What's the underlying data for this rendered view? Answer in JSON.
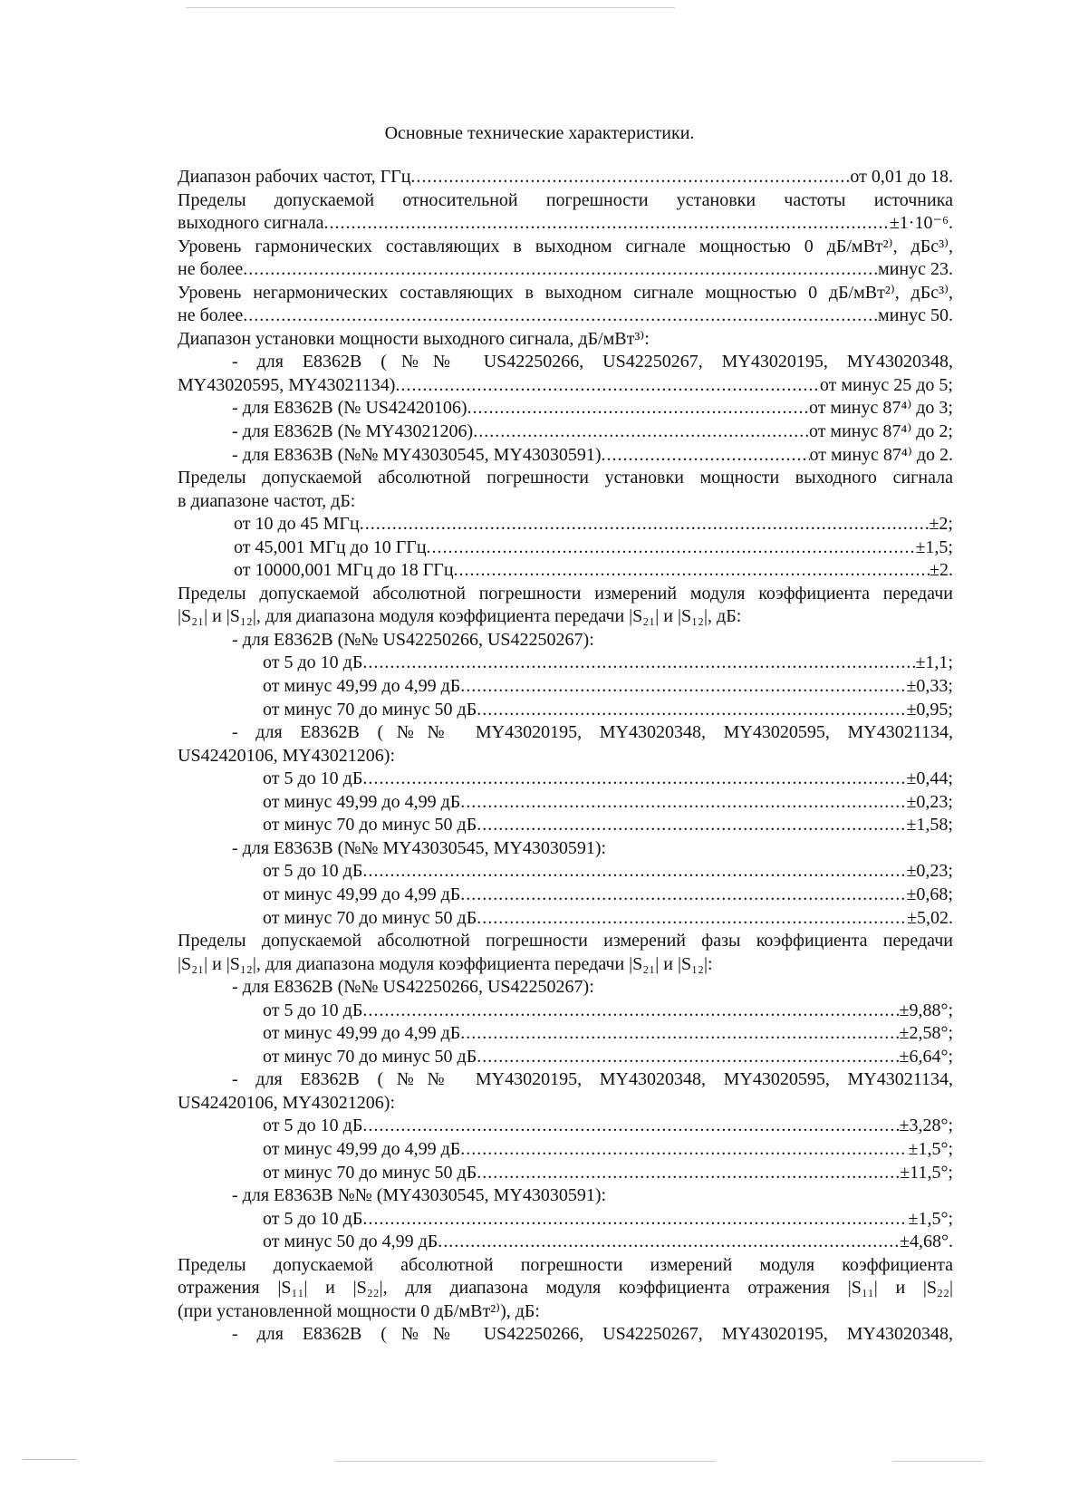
{
  "title": "Основные технические характеристики.",
  "lines": [
    {
      "type": "leader",
      "level": 0,
      "label": "Диапазон рабочих частот, ГГц",
      "value": "от 0,01 до 18."
    },
    {
      "type": "justify",
      "level": 0,
      "text": "Пределы допускаемой относительной погрешности установки частоты источника"
    },
    {
      "type": "leader",
      "level": 0,
      "label": "выходного сигнала",
      "value": "±1·10⁻⁶."
    },
    {
      "type": "justify",
      "level": 0,
      "text": "Уровень гармонических составляющих в выходном сигнале мощностью 0 дБ/мВт²⁾, дБс³⁾,"
    },
    {
      "type": "leader",
      "level": 0,
      "label": "не более",
      "value": "минус 23."
    },
    {
      "type": "justify",
      "level": 0,
      "text": "Уровень негармонических составляющих в выходном сигнале мощностью 0 дБ/мВт²⁾, дБс³⁾,"
    },
    {
      "type": "leader",
      "level": 0,
      "label": "не более",
      "value": "минус 50."
    },
    {
      "type": "plain",
      "level": 0,
      "text": "Диапазон установки мощности выходного сигнала, дБ/мВт³⁾:"
    },
    {
      "type": "justify",
      "level": 1,
      "text": "- для E8362B (№№ US42250266, US42250267, MY43020195, MY43020348,"
    },
    {
      "type": "leader",
      "level": 0,
      "label": "MY43020595, MY43021134)",
      "value": "от минус 25 до 5;"
    },
    {
      "type": "leader",
      "level": 1,
      "label": "- для E8362B (№ US42420106)",
      "value": "от минус 87⁴⁾ до 3;"
    },
    {
      "type": "leader",
      "level": 1,
      "label": "- для E8362B (№ MY43021206)",
      "value": "от минус 87⁴⁾ до 2;"
    },
    {
      "type": "leader",
      "level": 1,
      "label": "- для E8363B (№№ MY43030545, MY43030591)",
      "value": "от минус 87⁴⁾ до 2."
    },
    {
      "type": "justify",
      "level": 0,
      "text": "Пределы допускаемой абсолютной погрешности установки мощности выходного сигнала"
    },
    {
      "type": "plain",
      "level": 0,
      "text": "в диапазоне частот, дБ:"
    },
    {
      "type": "leader",
      "level": 2,
      "label": "от 10 до 45 МГц",
      "value": "±2;"
    },
    {
      "type": "leader",
      "level": 2,
      "label": "от 45,001 МГц до 10 ГГц",
      "value": "±1,5;"
    },
    {
      "type": "leader",
      "level": 2,
      "label": "от 10000,001 МГц до 18 ГГц",
      "value": "±2."
    },
    {
      "type": "justify",
      "level": 0,
      "text": "Пределы допускаемой абсолютной погрешности измерений модуля коэффициента передачи"
    },
    {
      "type": "plain",
      "level": 0,
      "text": "|S₂₁| и |S₁₂|, для диапазона модуля коэффициента передачи |S₂₁| и |S₁₂|, дБ:"
    },
    {
      "type": "plain",
      "level": 1,
      "text": "- для E8362B (№№ US42250266, US42250267):"
    },
    {
      "type": "leader",
      "level": 3,
      "label": "от 5 до 10 дБ",
      "value": "±1,1;"
    },
    {
      "type": "leader",
      "level": 3,
      "label": "от минус 49,99 до 4,99 дБ",
      "value": "±0,33;"
    },
    {
      "type": "leader",
      "level": 3,
      "label": "от минус 70 до минус 50 дБ",
      "value": "±0,95;"
    },
    {
      "type": "justify",
      "level": 1,
      "text": "- для E8362B (№№ MY43020195, MY43020348, MY43020595, MY43021134,"
    },
    {
      "type": "plain",
      "level": 0,
      "text": "US42420106, MY43021206):"
    },
    {
      "type": "leader",
      "level": 3,
      "label": "от 5 до 10 дБ",
      "value": "±0,44;"
    },
    {
      "type": "leader",
      "level": 3,
      "label": "от минус 49,99 до 4,99 дБ",
      "value": "±0,23;"
    },
    {
      "type": "leader",
      "level": 3,
      "label": "от минус 70 до минус 50 дБ",
      "value": "±1,58;"
    },
    {
      "type": "plain",
      "level": 1,
      "text": "- для E8363B (№№ MY43030545, MY43030591):"
    },
    {
      "type": "leader",
      "level": 3,
      "label": "от 5 до 10 дБ",
      "value": "±0,23;"
    },
    {
      "type": "leader",
      "level": 3,
      "label": "от минус 49,99 до 4,99 дБ",
      "value": "±0,68;"
    },
    {
      "type": "leader",
      "level": 3,
      "label": "от минус 70 до минус 50 дБ",
      "value": "±5,02."
    },
    {
      "type": "justify",
      "level": 0,
      "text": "Пределы допускаемой абсолютной погрешности измерений фазы коэффициента передачи"
    },
    {
      "type": "plain",
      "level": 0,
      "text": "|S₂₁| и |S₁₂|, для диапазона модуля коэффициента передачи |S₂₁| и |S₁₂|:"
    },
    {
      "type": "plain",
      "level": 1,
      "text": "- для E8362B (№№ US42250266, US42250267):"
    },
    {
      "type": "leader",
      "level": 3,
      "label": "от 5 до 10 дБ",
      "value": "±9,88°;"
    },
    {
      "type": "leader",
      "level": 3,
      "label": "от минус 49,99 до 4,99 дБ",
      "value": "±2,58°;"
    },
    {
      "type": "leader",
      "level": 3,
      "label": "от минус 70 до минус 50 дБ",
      "value": "±6,64°;"
    },
    {
      "type": "justify",
      "level": 1,
      "text": "- для E8362B (№№ MY43020195, MY43020348, MY43020595, MY43021134,"
    },
    {
      "type": "plain",
      "level": 0,
      "text": "US42420106, MY43021206):"
    },
    {
      "type": "leader",
      "level": 3,
      "label": "от 5 до 10 дБ",
      "value": "±3,28°;"
    },
    {
      "type": "leader",
      "level": 3,
      "label": "от минус 49,99 до 4,99 дБ",
      "value": "±1,5°;"
    },
    {
      "type": "leader",
      "level": 3,
      "label": "от минус 70 до минус 50 дБ",
      "value": "±11,5°;"
    },
    {
      "type": "plain",
      "level": 1,
      "text": "- для E8363B №№ (MY43030545, MY43030591):"
    },
    {
      "type": "leader",
      "level": 3,
      "label": "от 5 до 10 дБ",
      "value": "±1,5°;"
    },
    {
      "type": "leader",
      "level": 3,
      "label": "от минус 50 до 4,99 дБ",
      "value": "±4,68°."
    },
    {
      "type": "justify",
      "level": 0,
      "text": "Пределы допускаемой абсолютной погрешности измерений модуля коэффициента"
    },
    {
      "type": "justify",
      "level": 0,
      "text": "отражения |S₁₁| и |S₂₂|, для диапазона модуля коэффициента отражения |S₁₁| и |S₂₂|"
    },
    {
      "type": "plain",
      "level": 0,
      "text": "(при установленной мощности 0 дБ/мВт²⁾), дБ:"
    },
    {
      "type": "justify",
      "level": 1,
      "text": "- для E8362B (№№ US42250266, US42250267, MY43020195, MY43020348,"
    }
  ]
}
